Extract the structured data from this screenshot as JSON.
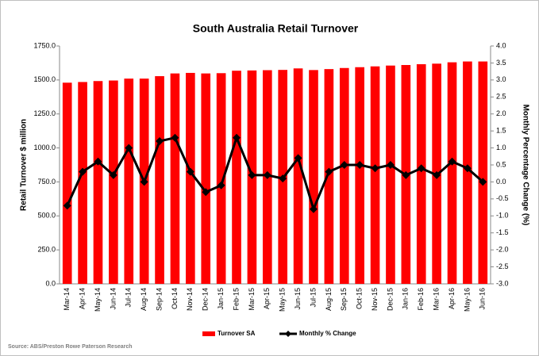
{
  "chart_data": {
    "type": "bar",
    "title": "South Australia Retail Turnover",
    "y_label": "Retail Turnover $ million",
    "y2_label": "Monthly Percentage Change (%)",
    "source": "Source: ABS/Preston Rowe Paterson Research",
    "categories": [
      "Mar-14",
      "Apr-14",
      "May-14",
      "Jun-14",
      "Jul-14",
      "Aug-14",
      "Sep-14",
      "Oct-14",
      "Nov-14",
      "Dec-14",
      "Jan-15",
      "Feb-15",
      "Mar-15",
      "Apr-15",
      "May-15",
      "Jun-15",
      "Jul-15",
      "Aug-15",
      "Sep-15",
      "Oct-15",
      "Nov-15",
      "Dec-15",
      "Jan-16",
      "Feb-16",
      "Mar-16",
      "Apr-16",
      "May-16",
      "Jun-16"
    ],
    "series": [
      {
        "name": "Turnover SA",
        "type": "bar",
        "color": "#ff0000",
        "values": [
          1480,
          1485,
          1492,
          1496,
          1510,
          1510,
          1528,
          1548,
          1552,
          1548,
          1550,
          1568,
          1570,
          1572,
          1574,
          1585,
          1573,
          1580,
          1588,
          1594,
          1600,
          1606,
          1610,
          1616,
          1620,
          1630,
          1636,
          1636
        ]
      },
      {
        "name": "Monthly % Change",
        "type": "line",
        "axis": "y2",
        "color": "#000000",
        "values": [
          -0.7,
          0.3,
          0.6,
          0.2,
          1.0,
          0.0,
          1.2,
          1.3,
          0.3,
          -0.3,
          -0.1,
          1.3,
          0.2,
          0.2,
          0.1,
          0.7,
          -0.8,
          0.3,
          0.5,
          0.5,
          0.4,
          0.5,
          0.2,
          0.4,
          0.2,
          0.6,
          0.4,
          0.0
        ]
      }
    ],
    "ylim": [
      0,
      1750
    ],
    "yticks": [
      {
        "value": 0,
        "label": "0.0"
      },
      {
        "value": 250,
        "label": "250.0"
      },
      {
        "value": 500,
        "label": "500.0"
      },
      {
        "value": 750,
        "label": "750.0"
      },
      {
        "value": 1000,
        "label": "1000.0"
      },
      {
        "value": 1250,
        "label": "1250.0"
      },
      {
        "value": 1500,
        "label": "1500.0"
      },
      {
        "value": 1750,
        "label": "1750.0"
      }
    ],
    "y2lim": [
      -3,
      4
    ],
    "y2ticks": [
      {
        "value": -3,
        "label": "-3.0"
      },
      {
        "value": -2.5,
        "label": "-2.5"
      },
      {
        "value": -2,
        "label": "-2.0"
      },
      {
        "value": -1.5,
        "label": "-1.5"
      },
      {
        "value": -1,
        "label": "-1.0"
      },
      {
        "value": -0.5,
        "label": "-0.5"
      },
      {
        "value": 0,
        "label": "0.0"
      },
      {
        "value": 0.5,
        "label": "0.5"
      },
      {
        "value": 1,
        "label": "1.0"
      },
      {
        "value": 1.5,
        "label": "1.5"
      },
      {
        "value": 2,
        "label": "2.0"
      },
      {
        "value": 2.5,
        "label": "2.5"
      },
      {
        "value": 3,
        "label": "3.0"
      },
      {
        "value": 3.5,
        "label": "3.5"
      },
      {
        "value": 4,
        "label": "4.0"
      }
    ],
    "legend": "bottom"
  }
}
